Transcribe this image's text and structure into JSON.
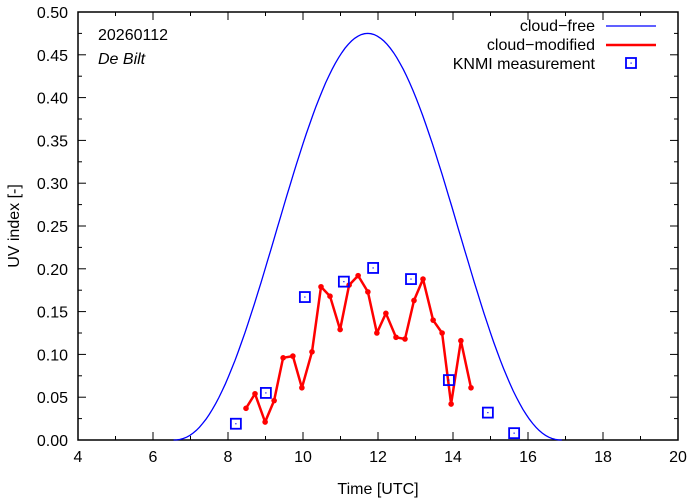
{
  "chart_data": {
    "type": "line",
    "title": "",
    "annotations": {
      "date": "20260112",
      "location": "De Bilt"
    },
    "xlabel": "Time  [UTC]",
    "ylabel": "UV index  [-]",
    "xlim": [
      4,
      20
    ],
    "ylim": [
      0,
      0.5
    ],
    "xticks": [
      4,
      6,
      8,
      10,
      12,
      14,
      16,
      18,
      20
    ],
    "xtick_labels": [
      "4",
      "6",
      "8",
      "10",
      "12",
      "14",
      "16",
      "18",
      "20"
    ],
    "yticks": [
      0,
      0.05,
      0.1,
      0.15,
      0.2,
      0.25,
      0.3,
      0.35,
      0.4,
      0.45,
      0.5
    ],
    "ytick_labels": [
      "0.00",
      "0.05",
      "0.10",
      "0.15",
      "0.20",
      "0.25",
      "0.30",
      "0.35",
      "0.40",
      "0.45",
      "0.50"
    ],
    "grid": false,
    "legend_position": "top-right",
    "series": [
      {
        "name": "cloud−free",
        "color": "#0000ff",
        "style": "line",
        "curve": {
          "start": 6.55,
          "end": 16.9,
          "peak_x": 11.73,
          "peak_y": 0.475
        }
      },
      {
        "name": "cloud−modified",
        "color": "#ff0000",
        "style": "line-points",
        "x": [
          8.48,
          8.72,
          8.99,
          9.23,
          9.47,
          9.73,
          9.97,
          10.24,
          10.48,
          10.72,
          10.99,
          11.23,
          11.47,
          11.73,
          11.97,
          12.21,
          12.48,
          12.72,
          12.96,
          13.2,
          13.47,
          13.71,
          13.95,
          14.21,
          14.48
        ],
        "y": [
          0.037,
          0.054,
          0.021,
          0.046,
          0.096,
          0.098,
          0.061,
          0.103,
          0.179,
          0.168,
          0.129,
          0.181,
          0.192,
          0.173,
          0.125,
          0.148,
          0.12,
          0.118,
          0.163,
          0.188,
          0.14,
          0.125,
          0.042,
          0.116,
          0.061
        ]
      },
      {
        "name": "KNMI measurement",
        "color": "#0000ff",
        "style": "square-markers",
        "x": [
          8.21,
          9.01,
          10.05,
          11.09,
          11.87,
          12.88,
          13.89,
          14.93,
          15.63
        ],
        "y": [
          0.019,
          0.055,
          0.167,
          0.185,
          0.201,
          0.188,
          0.07,
          0.032,
          0.008
        ]
      }
    ]
  }
}
